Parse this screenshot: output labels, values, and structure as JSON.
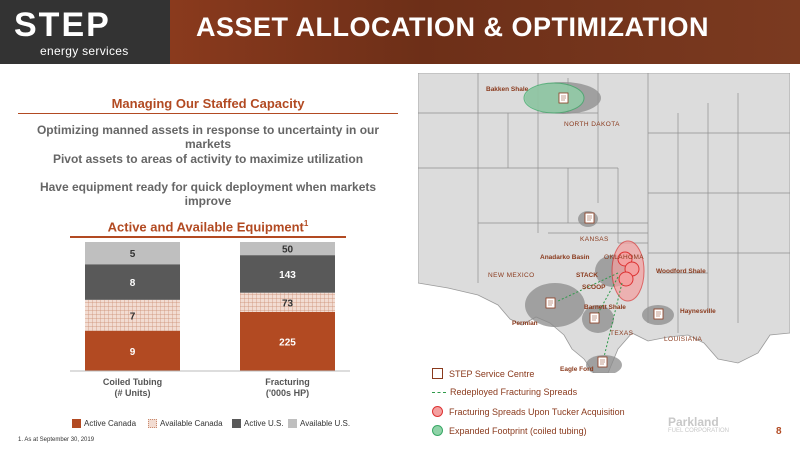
{
  "logo": {
    "brand": "STEP",
    "tagline": "energy services"
  },
  "header": {
    "title": "ASSET ALLOCATION & OPTIMIZATION"
  },
  "left": {
    "section_heading": "Managing Our Staffed Capacity",
    "bullets": [
      "Optimizing manned assets in response to uncertainty in our markets",
      "Pivot assets to areas of activity to maximize utilization",
      "Have equipment ready for quick deployment when markets improve"
    ],
    "chart_heading": "Active and Available Equipment",
    "chart_heading_sup": "1"
  },
  "chart_data": {
    "type": "bar",
    "stacked": true,
    "title": "Active and Available Equipment",
    "categories": [
      "Coiled Tubing\n(# Units)",
      "Fracturing\n('000s HP)"
    ],
    "category_lines": [
      [
        "Coiled Tubing",
        "(# Units)"
      ],
      [
        "Fracturing",
        "('000s HP)"
      ]
    ],
    "series": [
      {
        "name": "Active Canada",
        "values": [
          9,
          225
        ],
        "color": "#b24a22"
      },
      {
        "name": "Available Canada",
        "values": [
          7,
          73
        ],
        "color": "#e8c9bb",
        "pattern": "grid"
      },
      {
        "name": "Active U.S.",
        "values": [
          8,
          143
        ],
        "color": "#595959"
      },
      {
        "name": "Available U.S.",
        "values": [
          5,
          50
        ],
        "color": "#bfbfbf"
      }
    ],
    "legend_position": "bottom",
    "grid": false
  },
  "footnote": "1. As at September 30, 2019",
  "map": {
    "basin_labels": [
      "Bakken Shale",
      "Anadarko Basin",
      "STACK",
      "SCOOP",
      "Woodford Shale",
      "Barnett Shale",
      "Haynesville",
      "Permian",
      "Eagle Ford"
    ],
    "state_labels": [
      "NORTH DAKOTA",
      "KANSAS",
      "OKLAHOMA",
      "NEW MEXICO",
      "TEXAS",
      "LOUISIANA"
    ],
    "legend": [
      {
        "label": "STEP Service Centre",
        "icon": "service-centre-icon"
      },
      {
        "label": "Redeployed Fracturing Spreads",
        "icon": "dashed-arrow-icon",
        "color": "#2e9a4a"
      },
      {
        "label": "Fracturing Spreads Upon Tucker Acquisition",
        "icon": "red-circle-icon",
        "color": "#f4a0a0"
      },
      {
        "label": "Expanded Footprint (coiled tubing)",
        "icon": "green-circle-icon",
        "color": "#8fd3a8"
      }
    ]
  },
  "partner_logo": {
    "line1": "Parkland",
    "line2": "FUEL CORPORATION"
  },
  "page_number": "8",
  "colors": {
    "brand": "#b24a22",
    "header": "#7b3a20",
    "dark": "#333333"
  }
}
